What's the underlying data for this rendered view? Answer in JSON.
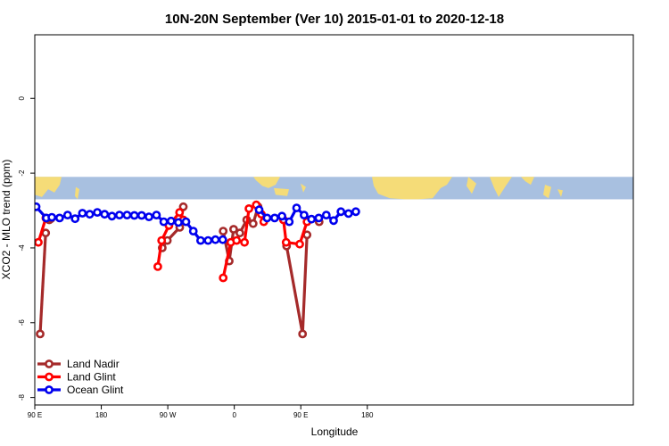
{
  "chart_data": {
    "type": "line",
    "title": "10N-20N September (Ver 10)   2015-01-01 to 2020-12-18",
    "xlabel": "Longitude",
    "ylabel": "XCO2 - MLO trend (ppm)",
    "xlim": [
      -90,
      180
    ],
    "ylim": [
      -8.2,
      1.7
    ],
    "x_ticks": [
      {
        "value": -90,
        "label": "90 E"
      },
      {
        "value": -60,
        "label": "180"
      },
      {
        "value": -30,
        "label": "90 W"
      },
      {
        "value": 0,
        "label": "0"
      },
      {
        "value": 30,
        "label": "90 E"
      },
      {
        "value": 60,
        "label": "180"
      }
    ],
    "y_ticks": [
      {
        "value": 0,
        "label": "0"
      },
      {
        "value": -2,
        "label": "-2"
      },
      {
        "value": -4,
        "label": "-4"
      },
      {
        "value": -6,
        "label": "-6"
      },
      {
        "value": -8,
        "label": "-8"
      }
    ],
    "grid": false,
    "legend_position": "bottom-left",
    "map_strip": {
      "y_range": [
        -2.7,
        -2.1
      ],
      "ocean_color": "#a8c0e0",
      "land_color": "#f5dc78"
    },
    "series": [
      {
        "name": "Land Nadir",
        "color": "#a52a2a",
        "segments": [
          [
            [
              -87.6,
              -6.3
            ],
            [
              -85.1,
              -3.6
            ]
          ],
          [
            [
              -83.5,
              -3.25
            ],
            [
              -82.7,
              -3.22
            ]
          ],
          [
            [
              -32.5,
              -4.0
            ],
            [
              -30.2,
              -3.8
            ],
            [
              -24.6,
              -3.45
            ],
            [
              -23.0,
              -2.9
            ]
          ],
          [
            [
              -5.0,
              -3.55
            ],
            [
              -2.3,
              -4.35
            ],
            [
              -0.3,
              -3.5
            ],
            [
              2.5,
              -3.6
            ],
            [
              5.6,
              -3.25
            ],
            [
              8.5,
              -3.35
            ],
            [
              10.7,
              -2.9
            ]
          ],
          [
            [
              23.6,
              -3.95
            ],
            [
              30.8,
              -6.3
            ],
            [
              32.8,
              -3.65
            ]
          ],
          [
            [
              38.3,
              -3.3
            ]
          ]
        ]
      },
      {
        "name": "Land Glint",
        "color": "#ff0000",
        "segments": [
          [
            [
              -88.4,
              -3.85
            ],
            [
              -85.0,
              -3.2
            ]
          ],
          [
            [
              -34.5,
              -4.5
            ],
            [
              -32.8,
              -3.8
            ],
            [
              -29.5,
              -3.4
            ],
            [
              -24.7,
              -3.05
            ],
            [
              -23.0,
              -3.25
            ]
          ],
          [
            [
              -5.0,
              -4.8
            ],
            [
              -1.6,
              -3.85
            ],
            [
              1.0,
              -3.8
            ],
            [
              4.6,
              -3.85
            ],
            [
              6.6,
              -2.95
            ],
            [
              9.9,
              -2.85
            ],
            [
              12.2,
              -3.1
            ],
            [
              13.3,
              -3.3
            ]
          ],
          [
            [
              22.2,
              -3.25
            ],
            [
              23.4,
              -3.85
            ],
            [
              29.5,
              -3.9
            ],
            [
              32.8,
              -3.3
            ]
          ]
        ]
      },
      {
        "name": "Ocean Glint",
        "color": "#0000ee",
        "segments": [
          [
            [
              -89.4,
              -2.9
            ],
            [
              -84.8,
              -3.2
            ],
            [
              -82.3,
              -3.18
            ],
            [
              -78.8,
              -3.2
            ],
            [
              -75.2,
              -3.12
            ],
            [
              -71.8,
              -3.22
            ],
            [
              -68.5,
              -3.07
            ],
            [
              -65.2,
              -3.1
            ],
            [
              -61.8,
              -3.05
            ],
            [
              -58.5,
              -3.1
            ],
            [
              -55.2,
              -3.15
            ],
            [
              -51.8,
              -3.12
            ],
            [
              -48.4,
              -3.12
            ],
            [
              -45.1,
              -3.13
            ],
            [
              -41.8,
              -3.13
            ],
            [
              -38.5,
              -3.17
            ],
            [
              -35.1,
              -3.12
            ],
            [
              -31.8,
              -3.3
            ],
            [
              -28.5,
              -3.28
            ],
            [
              -25.2,
              -3.32
            ],
            [
              -21.8,
              -3.3
            ],
            [
              -18.5,
              -3.55
            ],
            [
              -15.2,
              -3.8
            ],
            [
              -11.8,
              -3.8
            ],
            [
              -8.5,
              -3.78
            ],
            [
              -5.2,
              -3.78
            ]
          ],
          [
            [
              11.2,
              -2.98
            ],
            [
              14.8,
              -3.2
            ],
            [
              18.2,
              -3.2
            ],
            [
              21.5,
              -3.15
            ],
            [
              24.8,
              -3.3
            ],
            [
              28.1,
              -2.93
            ],
            [
              31.5,
              -3.12
            ],
            [
              34.8,
              -3.23
            ],
            [
              38.1,
              -3.2
            ],
            [
              41.5,
              -3.12
            ],
            [
              44.8,
              -3.27
            ],
            [
              48.1,
              -3.03
            ],
            [
              51.5,
              -3.08
            ],
            [
              54.8,
              -3.03
            ]
          ]
        ]
      }
    ]
  }
}
